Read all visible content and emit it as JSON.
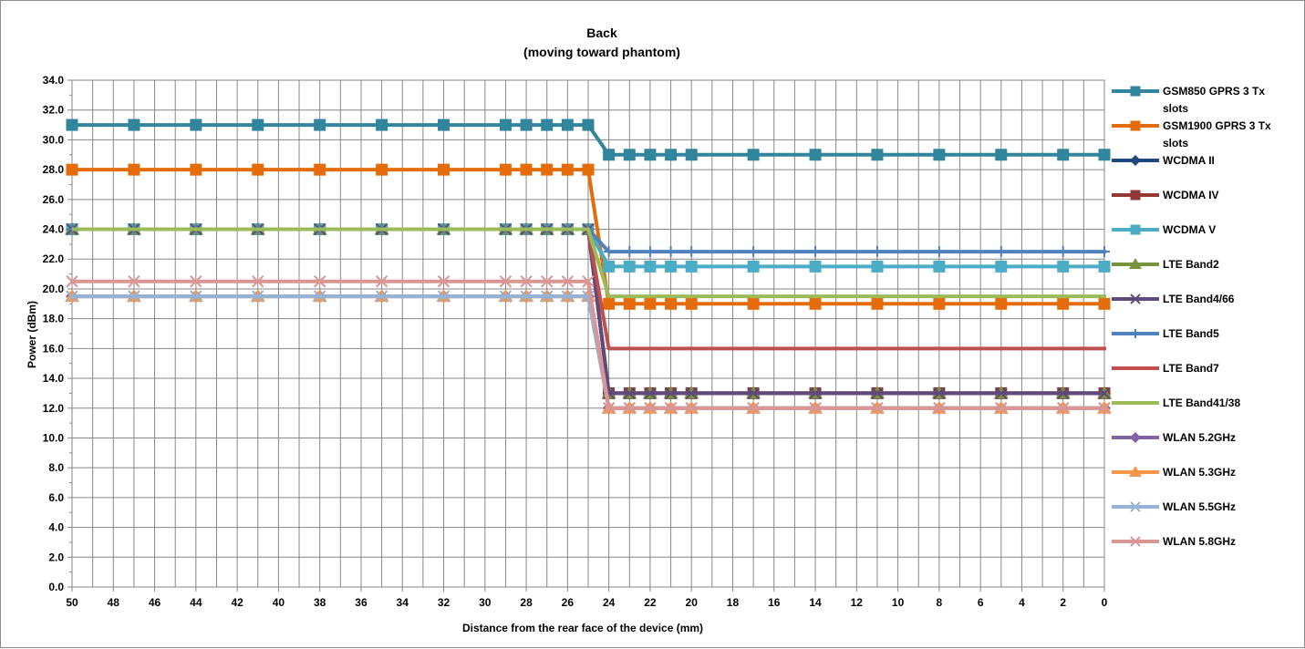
{
  "chart_data": {
    "type": "line",
    "title": "Back",
    "subtitle": "(moving toward phantom)",
    "xlabel": "Distance from the rear face of the device (mm)",
    "ylabel": "Power (dBm)",
    "x_ticks": [
      50,
      48,
      46,
      44,
      42,
      40,
      38,
      36,
      34,
      32,
      30,
      28,
      26,
      24,
      22,
      20,
      18,
      16,
      14,
      12,
      10,
      8,
      6,
      4,
      2,
      0
    ],
    "y_ticks": [
      "0.0",
      "2.0",
      "4.0",
      "6.0",
      "8.0",
      "10.0",
      "12.0",
      "14.0",
      "16.0",
      "18.0",
      "20.0",
      "22.0",
      "24.0",
      "26.0",
      "28.0",
      "30.0",
      "32.0",
      "34.0"
    ],
    "xlim": [
      50,
      0
    ],
    "ylim": [
      0,
      34
    ],
    "grid": true,
    "legend_position": "right",
    "x": [
      50,
      47,
      44,
      41,
      38,
      35,
      32,
      29,
      28,
      27,
      26,
      25,
      24,
      23,
      22,
      21,
      20,
      17,
      14,
      11,
      8,
      5,
      2,
      0
    ],
    "series": [
      {
        "name": "GSM850 GPRS 3 Tx slots",
        "color": "#31859c",
        "marker": "square",
        "high": 31.0,
        "low": 29.0
      },
      {
        "name": "GSM1900 GPRS 3 Tx slots",
        "color": "#e46c0a",
        "marker": "square",
        "high": 28.0,
        "low": 19.0
      },
      {
        "name": "WCDMA II",
        "color": "#1f497d",
        "marker": "diamond",
        "high": 24.0,
        "low": 13.0
      },
      {
        "name": "WCDMA IV",
        "color": "#953735",
        "marker": "square",
        "high": 24.0,
        "low": 13.0
      },
      {
        "name": "WCDMA V",
        "color": "#4bacc6",
        "marker": "square",
        "high": 24.0,
        "low": 21.5
      },
      {
        "name": "LTE Band2",
        "color": "#77933c",
        "marker": "triangle",
        "high": 24.0,
        "low": 13.0
      },
      {
        "name": "LTE Band4/66",
        "color": "#604a7b",
        "marker": "x",
        "high": 24.0,
        "low": 13.0
      },
      {
        "name": "LTE Band5",
        "color": "#4f81bd",
        "marker": "plus",
        "high": 24.0,
        "low": 22.5
      },
      {
        "name": "LTE Band7",
        "color": "#c0504d",
        "marker": "none",
        "high": 24.0,
        "low": 16.0
      },
      {
        "name": "LTE Band41/38",
        "color": "#9bbb59",
        "marker": "none",
        "high": 24.0,
        "low": 19.5
      },
      {
        "name": "WLAN 5.2GHz",
        "color": "#8064a2",
        "marker": "diamond",
        "high": 19.5,
        "low": 12.0
      },
      {
        "name": "WLAN 5.3GHz",
        "color": "#f79646",
        "marker": "triangle",
        "high": 19.5,
        "low": 12.0
      },
      {
        "name": "WLAN 5.5GHz",
        "color": "#95b3d7",
        "marker": "x",
        "high": 19.5,
        "low": 12.0
      },
      {
        "name": "WLAN 5.8GHz",
        "color": "#d99694",
        "marker": "x",
        "high": 20.5,
        "low": 12.0
      }
    ]
  }
}
